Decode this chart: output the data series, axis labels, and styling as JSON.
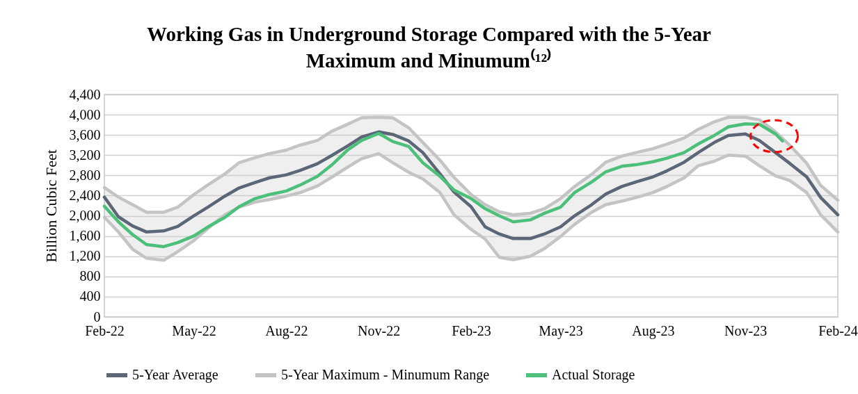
{
  "chart_data": {
    "type": "line",
    "title": "Working Gas in Underground Storage Compared with the 5-Year Maximum and Minumum⁽¹²⁾",
    "ylabel": "Billion Cubic Feet",
    "x": [
      "2022-02-01",
      "2022-02-15",
      "2022-03-01",
      "2022-03-15",
      "2022-04-01",
      "2022-04-15",
      "2022-05-01",
      "2022-05-15",
      "2022-06-01",
      "2022-06-15",
      "2022-07-01",
      "2022-07-15",
      "2022-08-01",
      "2022-08-15",
      "2022-09-01",
      "2022-09-15",
      "2022-10-01",
      "2022-10-15",
      "2022-11-01",
      "2022-11-15",
      "2022-12-01",
      "2022-12-15",
      "2023-01-01",
      "2023-01-15",
      "2023-02-01",
      "2023-02-15",
      "2023-03-01",
      "2023-03-15",
      "2023-04-01",
      "2023-04-15",
      "2023-05-01",
      "2023-05-15",
      "2023-06-01",
      "2023-06-15",
      "2023-07-01",
      "2023-07-15",
      "2023-08-01",
      "2023-08-15",
      "2023-09-01",
      "2023-09-15",
      "2023-10-01",
      "2023-10-15",
      "2023-11-01",
      "2023-11-15",
      "2023-12-01",
      "2023-12-15",
      "2024-01-01",
      "2024-01-15",
      "2024-02-01"
    ],
    "series": [
      {
        "name": "5-Year Average",
        "color": "#5b6677",
        "values": [
          2370,
          1980,
          1800,
          1680,
          1700,
          1790,
          2000,
          2170,
          2390,
          2550,
          2660,
          2750,
          2810,
          2900,
          3030,
          3190,
          3380,
          3560,
          3660,
          3610,
          3480,
          3250,
          2830,
          2470,
          2180,
          1780,
          1640,
          1550,
          1550,
          1640,
          1780,
          2000,
          2220,
          2430,
          2580,
          2670,
          2770,
          2890,
          3060,
          3250,
          3450,
          3590,
          3620,
          3490,
          3250,
          3040,
          2770,
          2360,
          2020
        ]
      },
      {
        "name": "5-Year Maximum - Minumum Range",
        "color": "#c4c4c4",
        "lower": [
          1970,
          1680,
          1340,
          1160,
          1120,
          1290,
          1510,
          1750,
          2020,
          2170,
          2270,
          2320,
          2390,
          2460,
          2590,
          2760,
          2960,
          3130,
          3230,
          3050,
          2860,
          2730,
          2460,
          2020,
          1730,
          1540,
          1180,
          1130,
          1200,
          1350,
          1590,
          1830,
          2070,
          2220,
          2290,
          2360,
          2460,
          2580,
          2750,
          2990,
          3080,
          3200,
          3180,
          2990,
          2790,
          2700,
          2460,
          2020,
          1680
        ],
        "upper": [
          2560,
          2370,
          2220,
          2070,
          2070,
          2170,
          2420,
          2610,
          2830,
          3050,
          3150,
          3230,
          3300,
          3400,
          3490,
          3670,
          3810,
          3940,
          3950,
          3940,
          3740,
          3450,
          3100,
          2760,
          2420,
          2220,
          2080,
          2020,
          2050,
          2140,
          2340,
          2580,
          2820,
          3060,
          3180,
          3250,
          3330,
          3420,
          3540,
          3710,
          3860,
          3950,
          3950,
          3900,
          3660,
          3400,
          3040,
          2600,
          2310
        ],
        "values": [
          2560,
          2370,
          2220,
          2070,
          2070,
          2170,
          2420,
          2610,
          2830,
          3050,
          3150,
          3230,
          3300,
          3400,
          3490,
          3670,
          3810,
          3940,
          3950,
          3940,
          3740,
          3450,
          3100,
          2760,
          2420,
          2220,
          2080,
          2020,
          2050,
          2140,
          2340,
          2580,
          2820,
          3060,
          3180,
          3250,
          3330,
          3420,
          3540,
          3710,
          3860,
          3950,
          3950,
          3900,
          3660,
          3400,
          3040,
          2600,
          2310
        ]
      },
      {
        "color": "#c4c4c4",
        "values": [
          1970,
          1680,
          1340,
          1160,
          1120,
          1290,
          1510,
          1750,
          2020,
          2170,
          2270,
          2320,
          2390,
          2460,
          2590,
          2760,
          2960,
          3130,
          3230,
          3050,
          2860,
          2730,
          2460,
          2020,
          1730,
          1540,
          1180,
          1130,
          1200,
          1350,
          1590,
          1830,
          2070,
          2220,
          2290,
          2360,
          2460,
          2580,
          2750,
          2990,
          3080,
          3200,
          3180,
          2990,
          2790,
          2700,
          2460,
          2020,
          1680
        ]
      },
      {
        "name": "Actual Storage",
        "color": "#4cc07a",
        "x": [
          "2022-02-01",
          "2022-02-15",
          "2022-03-01",
          "2022-03-15",
          "2022-04-01",
          "2022-04-15",
          "2022-05-01",
          "2022-05-15",
          "2022-06-01",
          "2022-06-15",
          "2022-07-01",
          "2022-07-15",
          "2022-08-01",
          "2022-08-15",
          "2022-09-01",
          "2022-09-15",
          "2022-10-01",
          "2022-10-15",
          "2022-11-01",
          "2022-11-15",
          "2022-12-01",
          "2022-12-15",
          "2023-01-01",
          "2023-01-15",
          "2023-02-01",
          "2023-02-15",
          "2023-03-01",
          "2023-03-15",
          "2023-04-01",
          "2023-04-15",
          "2023-05-01",
          "2023-05-15",
          "2023-06-01",
          "2023-06-15",
          "2023-07-01",
          "2023-07-15",
          "2023-08-01",
          "2023-08-15",
          "2023-09-01",
          "2023-09-15",
          "2023-10-01",
          "2023-10-15",
          "2023-11-01",
          "2023-11-15",
          "2023-12-01",
          "2023-12-08"
        ],
        "values": [
          2190,
          1880,
          1630,
          1430,
          1390,
          1470,
          1600,
          1780,
          1970,
          2180,
          2340,
          2420,
          2490,
          2610,
          2780,
          3000,
          3300,
          3490,
          3630,
          3470,
          3370,
          3050,
          2780,
          2510,
          2340,
          2140,
          2000,
          1880,
          1920,
          2050,
          2170,
          2460,
          2670,
          2870,
          2980,
          3010,
          3070,
          3140,
          3250,
          3420,
          3590,
          3760,
          3820,
          3810,
          3620,
          3480
        ]
      }
    ],
    "xlim": [
      "2022-02-01",
      "2024-02-01"
    ],
    "xticks": [
      {
        "value": "2022-02-01",
        "label": "Feb-22"
      },
      {
        "value": "2022-05-01",
        "label": "May-22"
      },
      {
        "value": "2022-08-01",
        "label": "Aug-22"
      },
      {
        "value": "2022-11-01",
        "label": "Nov-22"
      },
      {
        "value": "2023-02-01",
        "label": "Feb-23"
      },
      {
        "value": "2023-05-01",
        "label": "May-23"
      },
      {
        "value": "2023-08-01",
        "label": "Aug-23"
      },
      {
        "value": "2023-11-01",
        "label": "Nov-23"
      },
      {
        "value": "2024-02-01",
        "label": "Feb-24"
      }
    ],
    "ylim": [
      0,
      4400
    ],
    "yticks": [
      0,
      400,
      800,
      {
        "value": 1200,
        "label": "1,200"
      },
      {
        "value": 1600,
        "label": "1,600"
      },
      {
        "value": 2000,
        "label": "2,000"
      },
      {
        "value": 2400,
        "label": "2,400"
      },
      {
        "value": 2800,
        "label": "2,800"
      },
      {
        "value": 3200,
        "label": "3,200"
      },
      {
        "value": 3600,
        "label": "3,600"
      },
      {
        "value": 4000,
        "label": "4,000"
      },
      {
        "value": 4400,
        "label": "4,400"
      }
    ],
    "grid": "y",
    "legend": "bottom"
  }
}
